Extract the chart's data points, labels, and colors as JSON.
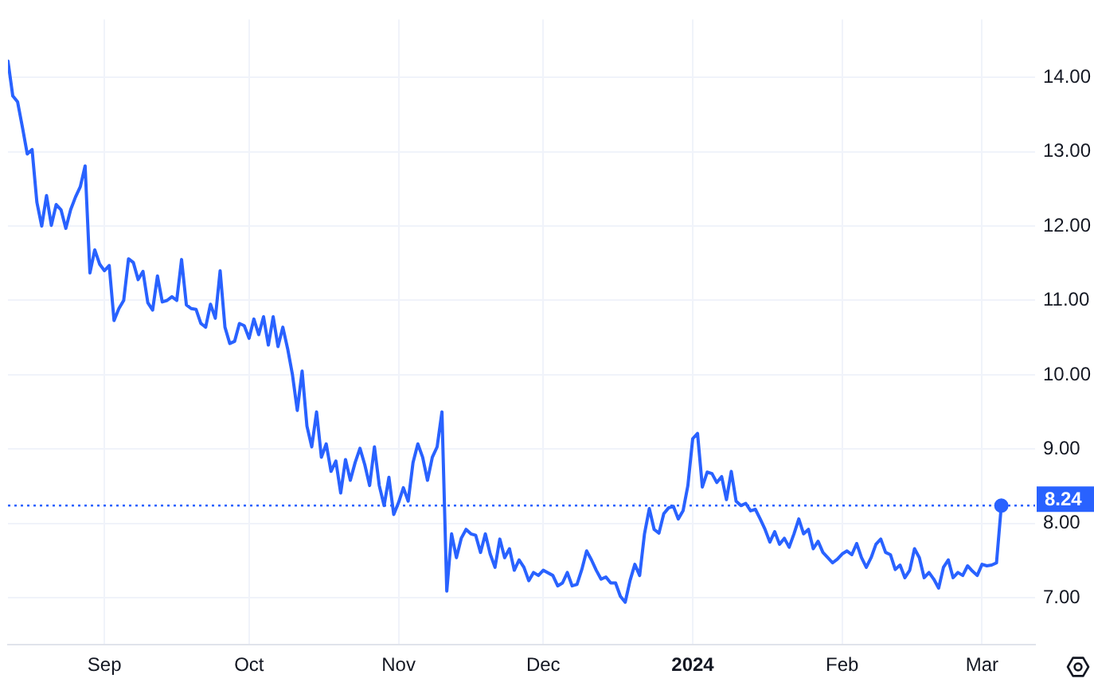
{
  "chart_data": {
    "type": "line",
    "x": [
      "2023-08-12",
      "2023-08-13",
      "2023-08-14",
      "2023-08-15",
      "2023-08-16",
      "2023-08-17",
      "2023-08-18",
      "2023-08-19",
      "2023-08-20",
      "2023-08-21",
      "2023-08-22",
      "2023-08-23",
      "2023-08-24",
      "2023-08-25",
      "2023-08-26",
      "2023-08-27",
      "2023-08-28",
      "2023-08-29",
      "2023-08-30",
      "2023-08-31",
      "2023-09-01",
      "2023-09-02",
      "2023-09-03",
      "2023-09-04",
      "2023-09-05",
      "2023-09-06",
      "2023-09-07",
      "2023-09-08",
      "2023-09-09",
      "2023-09-10",
      "2023-09-11",
      "2023-09-12",
      "2023-09-13",
      "2023-09-14",
      "2023-09-15",
      "2023-09-16",
      "2023-09-17",
      "2023-09-18",
      "2023-09-19",
      "2023-09-20",
      "2023-09-21",
      "2023-09-22",
      "2023-09-23",
      "2023-09-24",
      "2023-09-25",
      "2023-09-26",
      "2023-09-27",
      "2023-09-28",
      "2023-09-29",
      "2023-09-30",
      "2023-10-01",
      "2023-10-02",
      "2023-10-03",
      "2023-10-04",
      "2023-10-05",
      "2023-10-06",
      "2023-10-07",
      "2023-10-08",
      "2023-10-09",
      "2023-10-10",
      "2023-10-11",
      "2023-10-12",
      "2023-10-13",
      "2023-10-14",
      "2023-10-15",
      "2023-10-16",
      "2023-10-17",
      "2023-10-18",
      "2023-10-19",
      "2023-10-20",
      "2023-10-21",
      "2023-10-22",
      "2023-10-23",
      "2023-10-24",
      "2023-10-25",
      "2023-10-26",
      "2023-10-27",
      "2023-10-28",
      "2023-10-29",
      "2023-10-30",
      "2023-10-31",
      "2023-11-01",
      "2023-11-02",
      "2023-11-03",
      "2023-11-04",
      "2023-11-05",
      "2023-11-06",
      "2023-11-07",
      "2023-11-08",
      "2023-11-09",
      "2023-11-10",
      "2023-11-11",
      "2023-11-12",
      "2023-11-13",
      "2023-11-14",
      "2023-11-15",
      "2023-11-16",
      "2023-11-17",
      "2023-11-18",
      "2023-11-19",
      "2023-11-20",
      "2023-11-21",
      "2023-11-22",
      "2023-11-23",
      "2023-11-24",
      "2023-11-25",
      "2023-11-26",
      "2023-11-27",
      "2023-11-28",
      "2023-11-29",
      "2023-11-30",
      "2023-12-01",
      "2023-12-03",
      "2023-12-04",
      "2023-12-05",
      "2023-12-06",
      "2023-12-07",
      "2023-12-08",
      "2023-12-09",
      "2023-12-10",
      "2023-12-11",
      "2023-12-12",
      "2023-12-13",
      "2023-12-14",
      "2023-12-15",
      "2023-12-16",
      "2023-12-17",
      "2023-12-18",
      "2023-12-19",
      "2023-12-20",
      "2023-12-21",
      "2023-12-22",
      "2023-12-23",
      "2023-12-24",
      "2023-12-25",
      "2023-12-26",
      "2023-12-27",
      "2023-12-28",
      "2023-12-29",
      "2023-12-30",
      "2023-12-31",
      "2024-01-01",
      "2024-01-02",
      "2024-01-03",
      "2024-01-04",
      "2024-01-05",
      "2024-01-06",
      "2024-01-07",
      "2024-01-08",
      "2024-01-09",
      "2024-01-10",
      "2024-01-11",
      "2024-01-12",
      "2024-01-13",
      "2024-01-14",
      "2024-01-15",
      "2024-01-16",
      "2024-01-17",
      "2024-01-18",
      "2024-01-19",
      "2024-01-20",
      "2024-01-21",
      "2024-01-22",
      "2024-01-23",
      "2024-01-24",
      "2024-01-25",
      "2024-01-26",
      "2024-01-27",
      "2024-01-28",
      "2024-01-29",
      "2024-01-30",
      "2024-01-31",
      "2024-02-01",
      "2024-02-02",
      "2024-02-03",
      "2024-02-04",
      "2024-02-05",
      "2024-02-06",
      "2024-02-07",
      "2024-02-08",
      "2024-02-09",
      "2024-02-10",
      "2024-02-11",
      "2024-02-12",
      "2024-02-13",
      "2024-02-14",
      "2024-02-15",
      "2024-02-16",
      "2024-02-17",
      "2024-02-18",
      "2024-02-19",
      "2024-02-20",
      "2024-02-21",
      "2024-02-22",
      "2024-02-23",
      "2024-02-24",
      "2024-02-25",
      "2024-02-26",
      "2024-02-27",
      "2024-02-28",
      "2024-02-29",
      "2024-03-01",
      "2024-03-02",
      "2024-03-03",
      "2024-03-04",
      "2024-03-05"
    ],
    "series": [
      {
        "color": "#2962ff",
        "values": [
          14.22,
          13.75,
          13.67,
          13.33,
          12.97,
          13.03,
          12.32,
          12.0,
          12.41,
          12.01,
          12.29,
          12.22,
          11.97,
          12.22,
          12.39,
          12.53,
          12.81,
          11.37,
          11.68,
          11.49,
          11.4,
          11.47,
          10.73,
          10.89,
          11.0,
          11.56,
          11.51,
          11.28,
          11.39,
          10.97,
          10.87,
          11.33,
          10.98,
          11.0,
          11.05,
          11.0,
          11.55,
          10.94,
          10.89,
          10.88,
          10.69,
          10.64,
          10.95,
          10.76,
          11.4,
          10.64,
          10.42,
          10.45,
          10.69,
          10.66,
          10.49,
          10.75,
          10.54,
          10.78,
          10.4,
          10.78,
          10.38,
          10.64,
          10.35,
          10.0,
          9.52,
          10.05,
          9.31,
          9.03,
          9.5,
          8.89,
          9.07,
          8.7,
          8.84,
          8.41,
          8.86,
          8.58,
          8.82,
          9.01,
          8.79,
          8.51,
          9.03,
          8.51,
          8.24,
          8.62,
          8.12,
          8.28,
          8.48,
          8.3,
          8.82,
          9.07,
          8.89,
          8.58,
          8.89,
          9.03,
          9.5,
          7.09,
          7.86,
          7.54,
          7.8,
          7.92,
          7.86,
          7.84,
          7.61,
          7.86,
          7.59,
          7.41,
          7.79,
          7.54,
          7.66,
          7.37,
          7.51,
          7.41,
          7.23,
          7.34,
          7.3,
          7.37,
          7.3,
          7.16,
          7.2,
          7.34,
          7.16,
          7.18,
          7.38,
          7.63,
          7.51,
          7.37,
          7.25,
          7.28,
          7.2,
          7.2,
          7.02,
          6.94,
          7.23,
          7.45,
          7.3,
          7.86,
          8.2,
          7.92,
          7.87,
          8.13,
          8.21,
          8.23,
          8.06,
          8.17,
          8.51,
          9.14,
          9.21,
          8.49,
          8.69,
          8.67,
          8.55,
          8.63,
          8.32,
          8.7,
          8.3,
          8.24,
          8.27,
          8.17,
          8.19,
          8.06,
          7.92,
          7.75,
          7.89,
          7.72,
          7.8,
          7.68,
          7.86,
          8.06,
          7.86,
          7.92,
          7.66,
          7.76,
          7.61,
          7.54,
          7.47,
          7.52,
          7.59,
          7.63,
          7.58,
          7.73,
          7.54,
          7.41,
          7.54,
          7.72,
          7.79,
          7.61,
          7.58,
          7.38,
          7.44,
          7.27,
          7.37,
          7.66,
          7.54,
          7.27,
          7.34,
          7.25,
          7.13,
          7.41,
          7.51,
          7.27,
          7.34,
          7.3,
          7.43,
          7.36,
          7.3,
          7.45,
          7.43,
          7.44,
          7.47,
          8.24
        ]
      },
      {
        "type": "scatter",
        "color": "#2962ff",
        "marker": "circle",
        "x": [
          "2024-03-05"
        ],
        "values": [
          8.24
        ]
      }
    ],
    "xlim": [
      "2023-08-12",
      "2024-03-12"
    ],
    "xticks": [
      {
        "value": "2023-09-01",
        "label": "Sep"
      },
      {
        "value": "2023-10-01",
        "label": "Oct"
      },
      {
        "value": "2023-11-01",
        "label": "Nov"
      },
      {
        "value": "2023-12-01",
        "label": "Dec"
      },
      {
        "value": "2024-01-01",
        "label": "2024"
      },
      {
        "value": "2024-02-01",
        "label": "Feb"
      },
      {
        "value": "2024-03-01",
        "label": "Mar"
      }
    ],
    "ylim": [
      6.37,
      14.78
    ],
    "yticks": [
      {
        "value": 7,
        "label": "7.00"
      },
      {
        "value": 8,
        "label": "8.00"
      },
      {
        "value": 9,
        "label": "9.00"
      },
      {
        "value": 10,
        "label": "10.00"
      },
      {
        "value": 11,
        "label": "11.00"
      },
      {
        "value": 12,
        "label": "12.00"
      },
      {
        "value": 13,
        "label": "13.00"
      },
      {
        "value": 14,
        "label": "14.00"
      }
    ],
    "grid": true,
    "ref_lines": [
      {
        "axis": "y",
        "value": 8.24,
        "label": "8.24",
        "color": "#2962ff",
        "line_style": "dotted"
      }
    ]
  }
}
